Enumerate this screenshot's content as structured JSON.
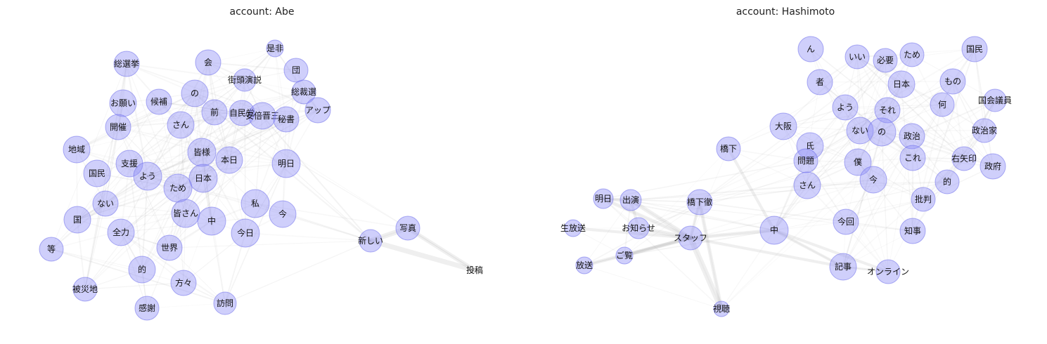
{
  "panels": [
    {
      "id": "abe",
      "title": "account: Abe",
      "nodes": [
        {
          "label": "総選挙",
          "r": 18
        },
        {
          "label": "会",
          "r": 18
        },
        {
          "label": "是非",
          "r": 12
        },
        {
          "label": "団",
          "r": 17
        },
        {
          "label": "街頭演説",
          "r": 16
        },
        {
          "label": "総裁選",
          "r": 17
        },
        {
          "label": "の",
          "r": 19
        },
        {
          "label": "お願い",
          "r": 19
        },
        {
          "label": "候補",
          "r": 18
        },
        {
          "label": "前",
          "r": 18
        },
        {
          "label": "自民党",
          "r": 18
        },
        {
          "label": "安倍晋三",
          "r": 19
        },
        {
          "label": "秘書",
          "r": 18
        },
        {
          "label": "アップ",
          "r": 18
        },
        {
          "label": "開催",
          "r": 18
        },
        {
          "label": "さん",
          "r": 19
        },
        {
          "label": "地域",
          "r": 19
        },
        {
          "label": "皆様",
          "r": 20
        },
        {
          "label": "本日",
          "r": 19
        },
        {
          "label": "明日",
          "r": 20
        },
        {
          "label": "支援",
          "r": 19
        },
        {
          "label": "国民",
          "r": 19
        },
        {
          "label": "よう",
          "r": 20
        },
        {
          "label": "日本",
          "r": 20
        },
        {
          "label": "ため",
          "r": 20
        },
        {
          "label": "ない",
          "r": 18
        },
        {
          "label": "私",
          "r": 20
        },
        {
          "label": "皆さん",
          "r": 20
        },
        {
          "label": "国",
          "r": 19
        },
        {
          "label": "中",
          "r": 20
        },
        {
          "label": "今",
          "r": 19
        },
        {
          "label": "全力",
          "r": 19
        },
        {
          "label": "今日",
          "r": 20
        },
        {
          "label": "等",
          "r": 17
        },
        {
          "label": "世界",
          "r": 18
        },
        {
          "label": "的",
          "r": 19
        },
        {
          "label": "方々",
          "r": 18
        },
        {
          "label": "被災地",
          "r": 17
        },
        {
          "label": "感謝",
          "r": 17
        },
        {
          "label": "訪問",
          "r": 16
        },
        {
          "label": "新しい",
          "r": 16
        },
        {
          "label": "写真",
          "r": 17
        },
        {
          "label": "投稿",
          "r": 0
        }
      ],
      "edges": [
        {
          "from": "新しい",
          "to": "写真",
          "w": 7
        },
        {
          "from": "新しい",
          "to": "投稿",
          "w": 7
        },
        {
          "from": "写真",
          "to": "投稿",
          "w": 6
        }
      ]
    },
    {
      "id": "hashimoto",
      "title": "account: Hashimoto",
      "nodes": [
        {
          "label": "ん",
          "r": 18
        },
        {
          "label": "いい",
          "r": 17
        },
        {
          "label": "必要",
          "r": 17
        },
        {
          "label": "ため",
          "r": 17
        },
        {
          "label": "国民",
          "r": 18
        },
        {
          "label": "者",
          "r": 18
        },
        {
          "label": "日本",
          "r": 19
        },
        {
          "label": "もの",
          "r": 18
        },
        {
          "label": "国会議員",
          "r": 16
        },
        {
          "label": "よう",
          "r": 18
        },
        {
          "label": "それ",
          "r": 18
        },
        {
          "label": "何",
          "r": 17
        },
        {
          "label": "大阪",
          "r": 19
        },
        {
          "label": "ない",
          "r": 19
        },
        {
          "label": "の",
          "r": 20
        },
        {
          "label": "政治家",
          "r": 17
        },
        {
          "label": "政治",
          "r": 18
        },
        {
          "label": "橋下",
          "r": 17
        },
        {
          "label": "氏",
          "r": 19
        },
        {
          "label": "これ",
          "r": 18
        },
        {
          "label": "右矢印",
          "r": 17
        },
        {
          "label": "問題",
          "r": 17
        },
        {
          "label": "僕",
          "r": 19
        },
        {
          "label": "政府",
          "r": 18
        },
        {
          "label": "さん",
          "r": 19
        },
        {
          "label": "今",
          "r": 19
        },
        {
          "label": "的",
          "r": 17
        },
        {
          "label": "明日",
          "r": 14
        },
        {
          "label": "出演",
          "r": 15
        },
        {
          "label": "橋下徹",
          "r": 18
        },
        {
          "label": "批判",
          "r": 17
        },
        {
          "label": "生放送",
          "r": 12
        },
        {
          "label": "お知らせ",
          "r": 15
        },
        {
          "label": "中",
          "r": 20
        },
        {
          "label": "今回",
          "r": 18
        },
        {
          "label": "知事",
          "r": 18
        },
        {
          "label": "スタッフ",
          "r": 17
        },
        {
          "label": "ご覧",
          "r": 12
        },
        {
          "label": "放送",
          "r": 12
        },
        {
          "label": "記事",
          "r": 19
        },
        {
          "label": "オンライン",
          "r": 17
        },
        {
          "label": "視聴",
          "r": 11
        }
      ],
      "edges": [
        {
          "from": "スタッフ",
          "to": "視聴",
          "w": 8
        },
        {
          "from": "橋下徹",
          "to": "視聴",
          "w": 5
        },
        {
          "from": "出演",
          "to": "スタッフ",
          "w": 6
        },
        {
          "from": "明日",
          "to": "スタッフ",
          "w": 5
        },
        {
          "from": "お知らせ",
          "to": "スタッフ",
          "w": 6
        },
        {
          "from": "ご覧",
          "to": "スタッフ",
          "w": 5
        },
        {
          "from": "放送",
          "to": "スタッフ",
          "w": 5
        },
        {
          "from": "生放送",
          "to": "スタッフ",
          "w": 4
        },
        {
          "from": "橋下徹",
          "to": "スタッフ",
          "w": 4
        },
        {
          "from": "出演",
          "to": "お知らせ",
          "w": 4
        },
        {
          "from": "明日",
          "to": "出演",
          "w": 4
        },
        {
          "from": "中",
          "to": "スタッフ",
          "w": 5
        },
        {
          "from": "中",
          "to": "記事",
          "w": 4
        },
        {
          "from": "スタッフ",
          "to": "記事",
          "w": 4
        },
        {
          "from": "中",
          "to": "橋下",
          "w": 4
        },
        {
          "from": "中",
          "to": "オンライン",
          "w": 4
        },
        {
          "from": "記事",
          "to": "オンライン",
          "w": 3
        }
      ]
    }
  ]
}
